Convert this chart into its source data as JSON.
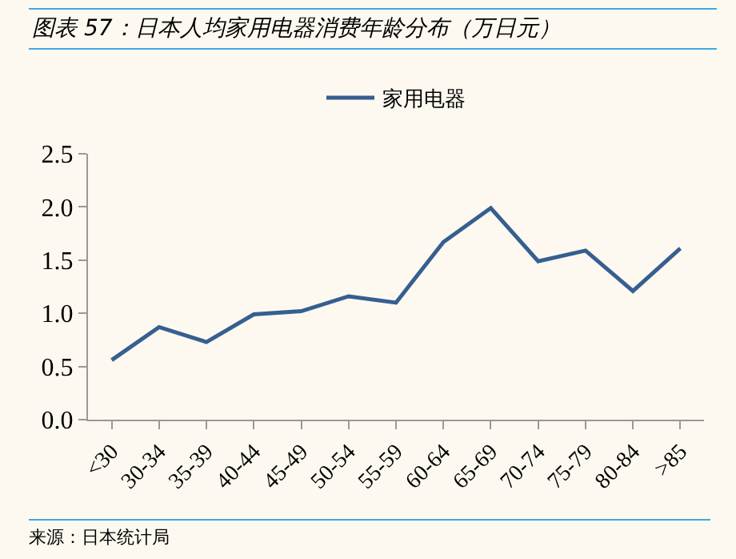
{
  "chart_data": {
    "type": "line",
    "title": "图表 57：日本人均家用电器消费年龄分布（万日元）",
    "categories": [
      "<30",
      "30-34",
      "35-39",
      "40-44",
      "45-49",
      "50-54",
      "55-59",
      "60-64",
      "65-69",
      "70-74",
      "75-79",
      "80-84",
      ">85"
    ],
    "series": [
      {
        "name": "家用电器",
        "color": "#365f91",
        "values": [
          0.56,
          0.87,
          0.73,
          0.99,
          1.02,
          1.16,
          1.1,
          1.67,
          1.99,
          1.49,
          1.59,
          1.21,
          1.61
        ]
      }
    ],
    "ylim": [
      0,
      2.5
    ],
    "yticks": [
      {
        "value": 0,
        "label": "0.0"
      },
      {
        "value": 0.5,
        "label": "0.5"
      },
      {
        "value": 1,
        "label": "1.0"
      },
      {
        "value": 1.5,
        "label": "1.5"
      },
      {
        "value": 2,
        "label": "2.0"
      },
      {
        "value": 2.5,
        "label": "2.5"
      }
    ],
    "grid": false,
    "legend": "top",
    "marker": "none",
    "line_style": "solid",
    "annotations": [
      "来源：日本统计局"
    ]
  }
}
